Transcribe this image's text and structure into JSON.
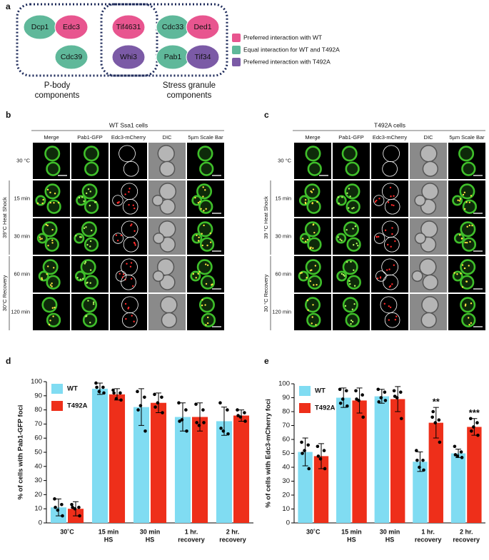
{
  "panel_labels": [
    "a",
    "b",
    "c",
    "d",
    "e"
  ],
  "diagram": {
    "nodes": [
      {
        "label": "Dcp1",
        "color": "#5fb89a"
      },
      {
        "label": "Edc3",
        "color": "#e8558f"
      },
      {
        "label": "Cdc39",
        "color": "#5fb89a"
      },
      {
        "label": "Tif4631",
        "color": "#e8558f"
      },
      {
        "label": "Whi3",
        "color": "#7b5aa6"
      },
      {
        "label": "Cdc33",
        "color": "#5fb89a"
      },
      {
        "label": "Ded1",
        "color": "#e8558f"
      },
      {
        "label": "Pab1",
        "color": "#5fb89a"
      },
      {
        "label": "Tif34",
        "color": "#7b5aa6"
      }
    ],
    "groups": [
      {
        "lines": [
          "P-body",
          "components"
        ]
      },
      {
        "lines": [
          "Stress granule",
          "components"
        ]
      }
    ],
    "legend": [
      {
        "label": "Preferred interaction with WT",
        "color": "#e8558f"
      },
      {
        "label": "Equal interaction for WT and T492A",
        "color": "#5fb89a"
      },
      {
        "label": "Preferred interaction with T492A",
        "color": "#7b5aa6"
      }
    ]
  },
  "microscopy": [
    {
      "title": "WT Ssa1 cells",
      "columns": [
        "Merge",
        "Pab1-GFP",
        "Edc3-mCherry",
        "DIC",
        "5µm Scale Bar"
      ],
      "rows": [
        "30 °C",
        "15 min",
        "30 min",
        "60 min",
        "120 min"
      ],
      "groups": [
        "39°C Heat Shock",
        "30°C Recovery"
      ]
    },
    {
      "title": "T492A cells",
      "columns": [
        "Merge",
        "Pab1-GFP",
        "Edc3-mCherry",
        "DIC",
        "5µm Scale Bar"
      ],
      "rows": [
        "30 °C",
        "15 min",
        "30 min",
        "60 min",
        "120 min"
      ],
      "groups": [
        "39 °C Heat Shock",
        "30 °C Recovery"
      ]
    }
  ],
  "chart_data": [
    {
      "type": "bar",
      "ylabel": "% of cells with Pab1-GFP foci",
      "categories": [
        [
          "30˚C"
        ],
        [
          "15 min",
          "HS"
        ],
        [
          "30 min",
          "HS"
        ],
        [
          "1 hr.",
          "recovery"
        ],
        [
          "2 hr.",
          "recovery"
        ]
      ],
      "ylim": [
        0,
        100
      ],
      "yticks": [
        0,
        10,
        20,
        30,
        40,
        50,
        60,
        70,
        80,
        90,
        100
      ],
      "series": [
        {
          "name": "WT",
          "color": "#80dcf2",
          "values": [
            11,
            95,
            82,
            75,
            72
          ],
          "errors": [
            6,
            4,
            13,
            10,
            10
          ],
          "points": [
            [
              17,
              13,
              9,
              5,
              11
            ],
            [
              99,
              96,
              93,
              92,
              96
            ],
            [
              93,
              89,
              83,
              65,
              80
            ],
            [
              85,
              80,
              73,
              65,
              72
            ],
            [
              85,
              80,
              65,
              63,
              67
            ]
          ]
        },
        {
          "name": "T492A",
          "color": "#ee2f1a",
          "values": [
            10,
            91,
            85,
            75,
            76
          ],
          "errors": [
            5,
            4,
            7,
            10,
            4
          ],
          "points": [
            [
              13,
              11,
              10,
              5,
              11
            ],
            [
              94,
              92,
              88,
              87,
              92
            ],
            [
              91,
              89,
              85,
              78,
              82
            ],
            [
              84,
              80,
              69,
              71,
              71
            ],
            [
              80,
              78,
              75,
              72,
              76
            ]
          ]
        }
      ]
    },
    {
      "type": "bar",
      "ylabel": "% of cells with Edc3-mCherry foci",
      "categories": [
        [
          "30˚C"
        ],
        [
          "15 min",
          "HS"
        ],
        [
          "30 min",
          "HS"
        ],
        [
          "1 hr.",
          "recovery"
        ],
        [
          "2 hr.",
          "recovery"
        ]
      ],
      "ylim": [
        0,
        100
      ],
      "yticks": [
        0,
        10,
        20,
        30,
        40,
        50,
        60,
        70,
        80,
        90,
        100
      ],
      "series": [
        {
          "name": "WT",
          "color": "#80dcf2",
          "values": [
            51,
            90,
            91,
            44,
            50
          ],
          "errors": [
            10,
            7,
            5,
            7,
            3
          ],
          "points": [
            [
              58,
              56,
              52,
              39,
              50
            ],
            [
              96,
              95,
              89,
              84,
              86
            ],
            [
              96,
              94,
              90,
              88,
              87
            ],
            [
              52,
              45,
              40,
              38,
              45
            ],
            [
              55,
              51,
              48,
              47,
              49
            ]
          ]
        },
        {
          "name": "T492A",
          "color": "#ee2f1a",
          "values": [
            48,
            88,
            89,
            72,
            69
          ],
          "errors": [
            9,
            9,
            9,
            11,
            6
          ],
          "points": [
            [
              55,
              52,
              46,
              39,
              48
            ],
            [
              95,
              92,
              88,
              76,
              89
            ],
            [
              95,
              94,
              90,
              75,
              91
            ],
            [
              76,
              74,
              72,
              58,
              80
            ],
            [
              75,
              72,
              69,
              63,
              66
            ]
          ],
          "annotations": [
            null,
            null,
            null,
            "**",
            "***"
          ]
        }
      ]
    }
  ]
}
